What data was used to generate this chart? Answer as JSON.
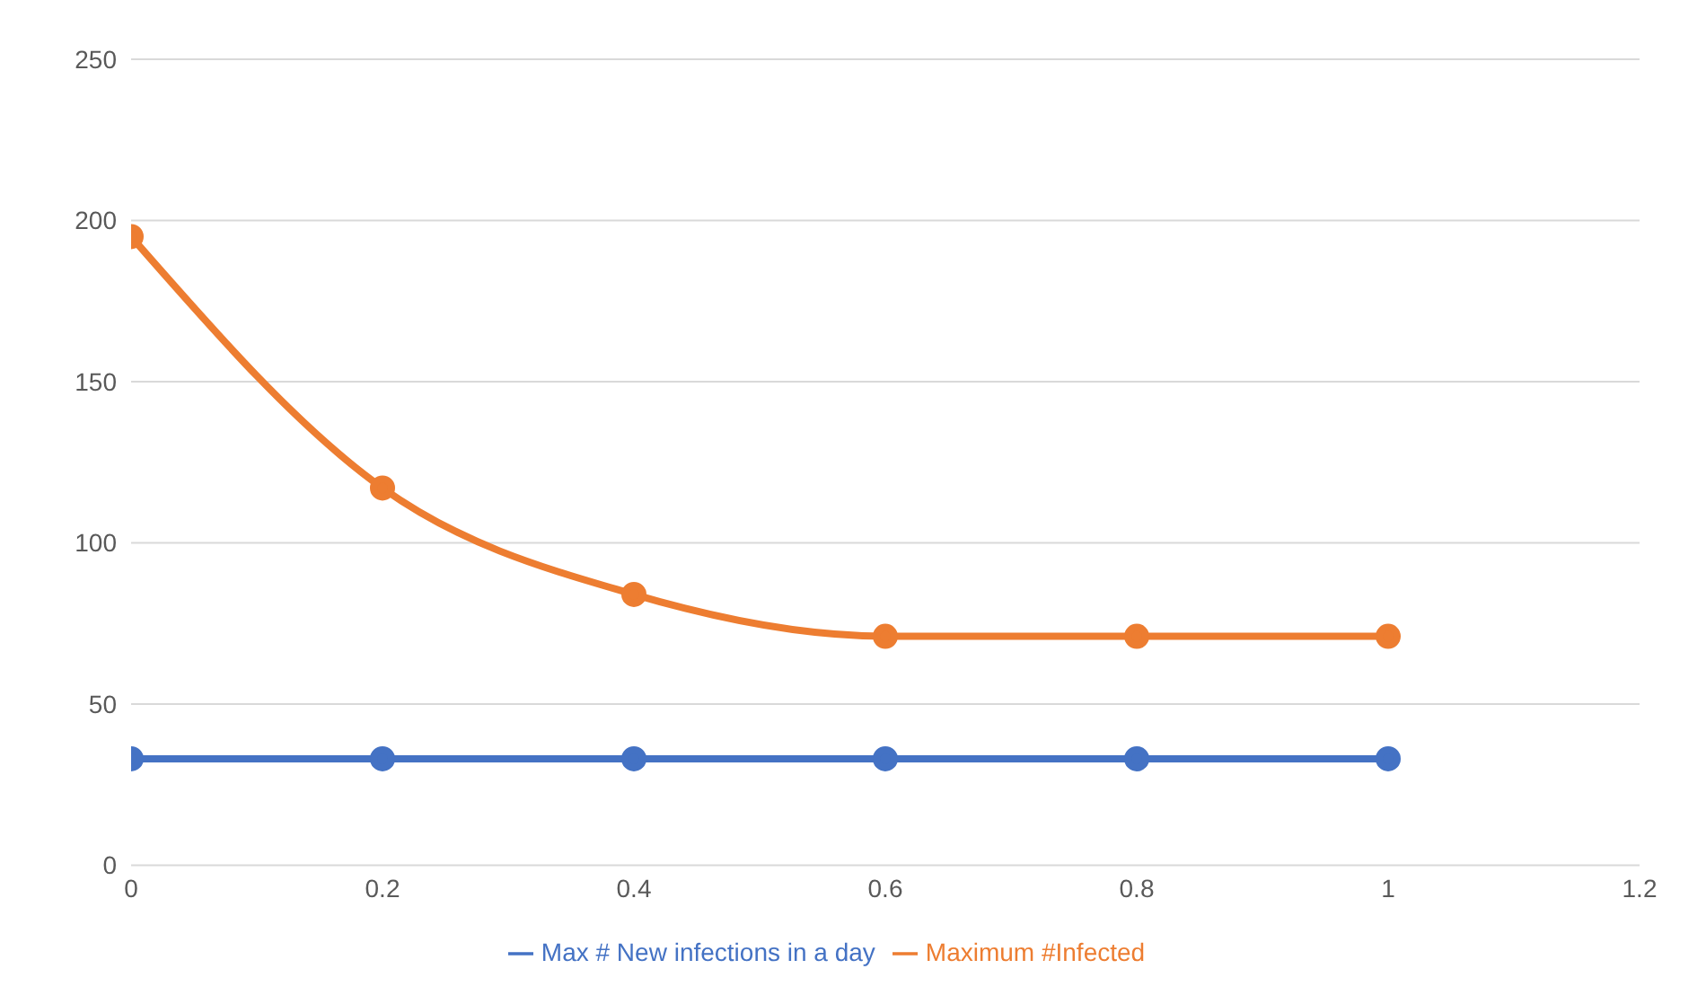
{
  "chart_data": {
    "type": "line",
    "x": [
      0,
      0.2,
      0.4,
      0.6,
      0.8,
      1
    ],
    "series": [
      {
        "name": "Maximum #Infected",
        "color": "#ed7d31",
        "values": [
          195,
          117,
          84,
          71,
          71,
          71
        ]
      },
      {
        "name": "Max # New infections in a day",
        "color": "#4472c4",
        "values": [
          33,
          33,
          33,
          33,
          33,
          33
        ]
      }
    ],
    "xlim": [
      0,
      1.2
    ],
    "xticks": [
      0,
      0.2,
      0.4,
      0.6,
      0.8,
      1,
      1.2
    ],
    "ylim": [
      0,
      250
    ],
    "yticks": [
      0,
      50,
      100,
      150,
      200,
      250
    ],
    "grid": "y",
    "legend": "bottom",
    "marker": "circle"
  }
}
